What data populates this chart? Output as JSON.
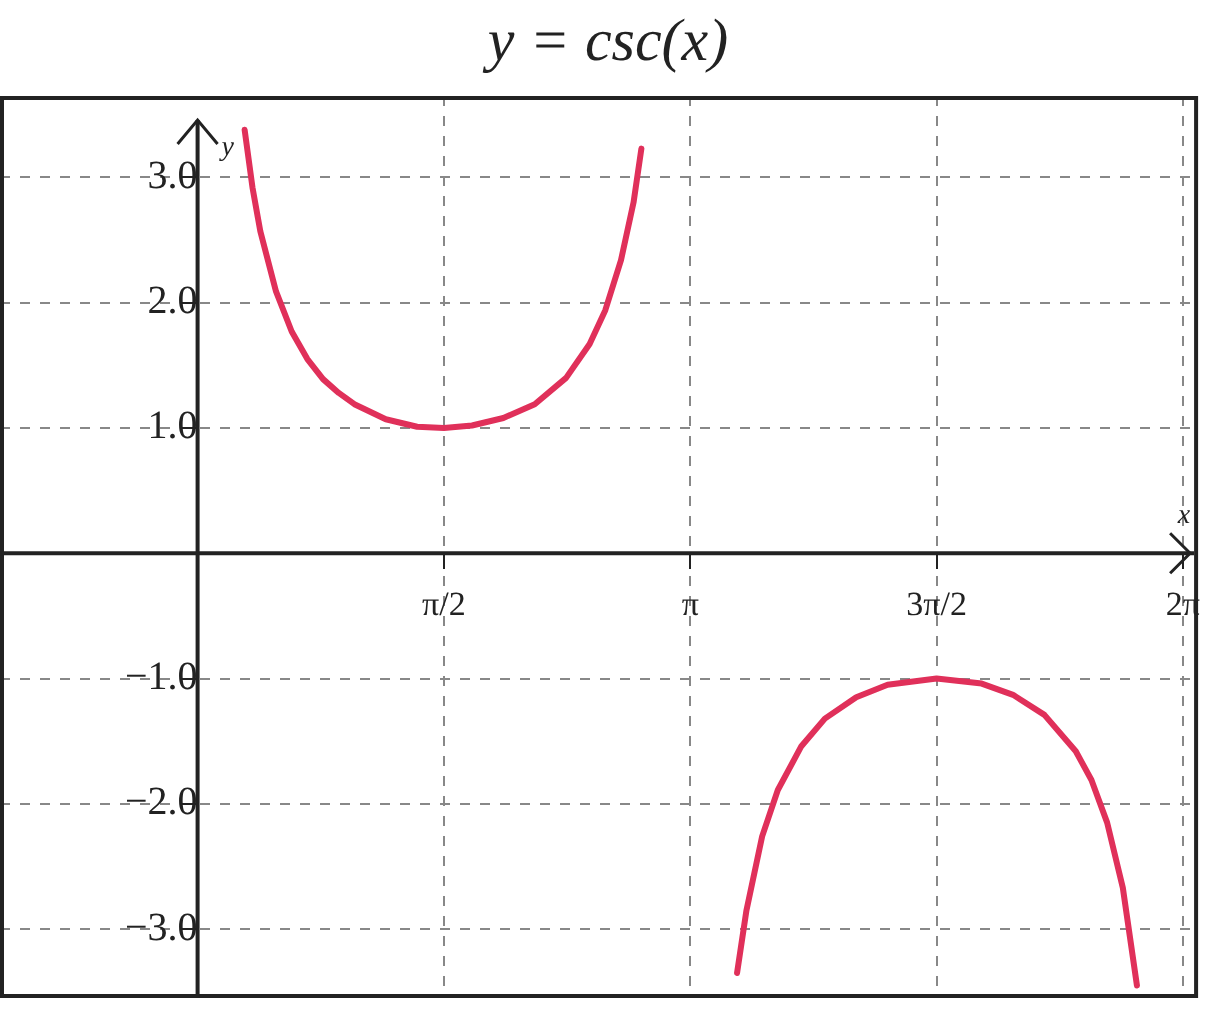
{
  "chart_data": {
    "type": "line",
    "title": "y = csc(x)",
    "xlabel": "x",
    "ylabel": "y",
    "xlim": [
      -1.26,
      6.38
    ],
    "ylim": [
      -3.55,
      3.65
    ],
    "xticks": [
      {
        "value": 1.5708,
        "label": "π/2"
      },
      {
        "value": 3.1416,
        "label": "π"
      },
      {
        "value": 4.7124,
        "label": "3π/2"
      },
      {
        "value": 6.2832,
        "label": "2π"
      }
    ],
    "yticks": [
      {
        "value": -3,
        "label": "−3.0"
      },
      {
        "value": -2,
        "label": "−2.0"
      },
      {
        "value": -1,
        "label": "−1.0"
      },
      {
        "value": 1,
        "label": "1.0"
      },
      {
        "value": 2,
        "label": "2.0"
      },
      {
        "value": 3,
        "label": "3.0"
      }
    ],
    "grid": true,
    "marker": "none",
    "line_style": "solid",
    "series": [
      {
        "color": "#e0305a",
        "x": [
          0.3,
          0.35,
          0.4,
          0.5,
          0.6,
          0.7,
          0.8,
          0.9,
          1.0,
          1.2,
          1.4,
          1.5708,
          1.75,
          1.95,
          2.15,
          2.35,
          2.5,
          2.6,
          2.7,
          2.78,
          2.83,
          3.14,
          3.44,
          3.5,
          3.6,
          3.7,
          3.85,
          4.0,
          4.2,
          4.4,
          4.7124,
          5.0,
          5.2,
          5.4,
          5.6,
          5.7,
          5.8,
          5.9,
          5.99
        ],
        "values": [
          3.38,
          2.92,
          2.57,
          2.09,
          1.77,
          1.55,
          1.39,
          1.28,
          1.19,
          1.07,
          1.01,
          1.0,
          1.02,
          1.08,
          1.19,
          1.4,
          1.67,
          1.94,
          2.34,
          2.8,
          3.23,
          null,
          -3.35,
          -2.85,
          -2.26,
          -1.89,
          -1.54,
          -1.32,
          -1.15,
          -1.05,
          -1.0,
          -1.04,
          -1.13,
          -1.29,
          -1.58,
          -1.81,
          -2.15,
          -2.67,
          -3.45
        ]
      }
    ]
  }
}
